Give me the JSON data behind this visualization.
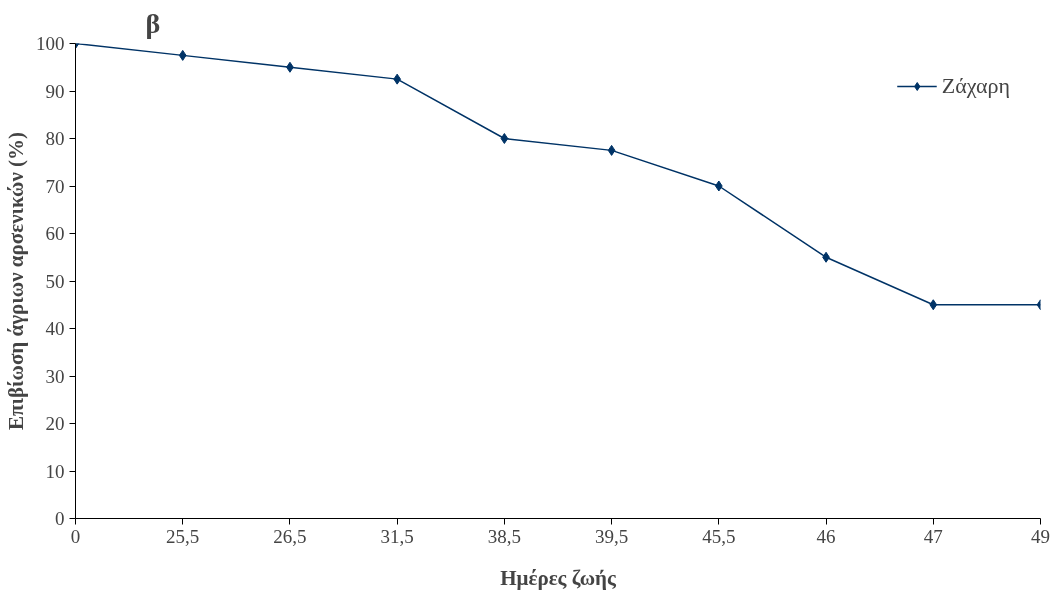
{
  "chart_data": {
    "type": "line",
    "title": "β",
    "xlabel": "Ημέρες ζωής",
    "ylabel": "Επιβίωση άγριων αρσενικών (%)",
    "categories": [
      "0",
      "25,5",
      "26,5",
      "31,5",
      "38,5",
      "39,5",
      "45,5",
      "46",
      "47",
      "49"
    ],
    "series": [
      {
        "name": "Ζάχαρη",
        "color": "#003366",
        "values": [
          100,
          97.5,
          95,
          92.5,
          80,
          77.5,
          70,
          55,
          45,
          45
        ]
      }
    ],
    "ylim": [
      0,
      100
    ],
    "yticks": [
      0,
      10,
      20,
      30,
      40,
      50,
      60,
      70,
      80,
      90,
      100
    ],
    "grid": false,
    "legend": "top right",
    "marker": "diamond",
    "line_style": "solid"
  }
}
